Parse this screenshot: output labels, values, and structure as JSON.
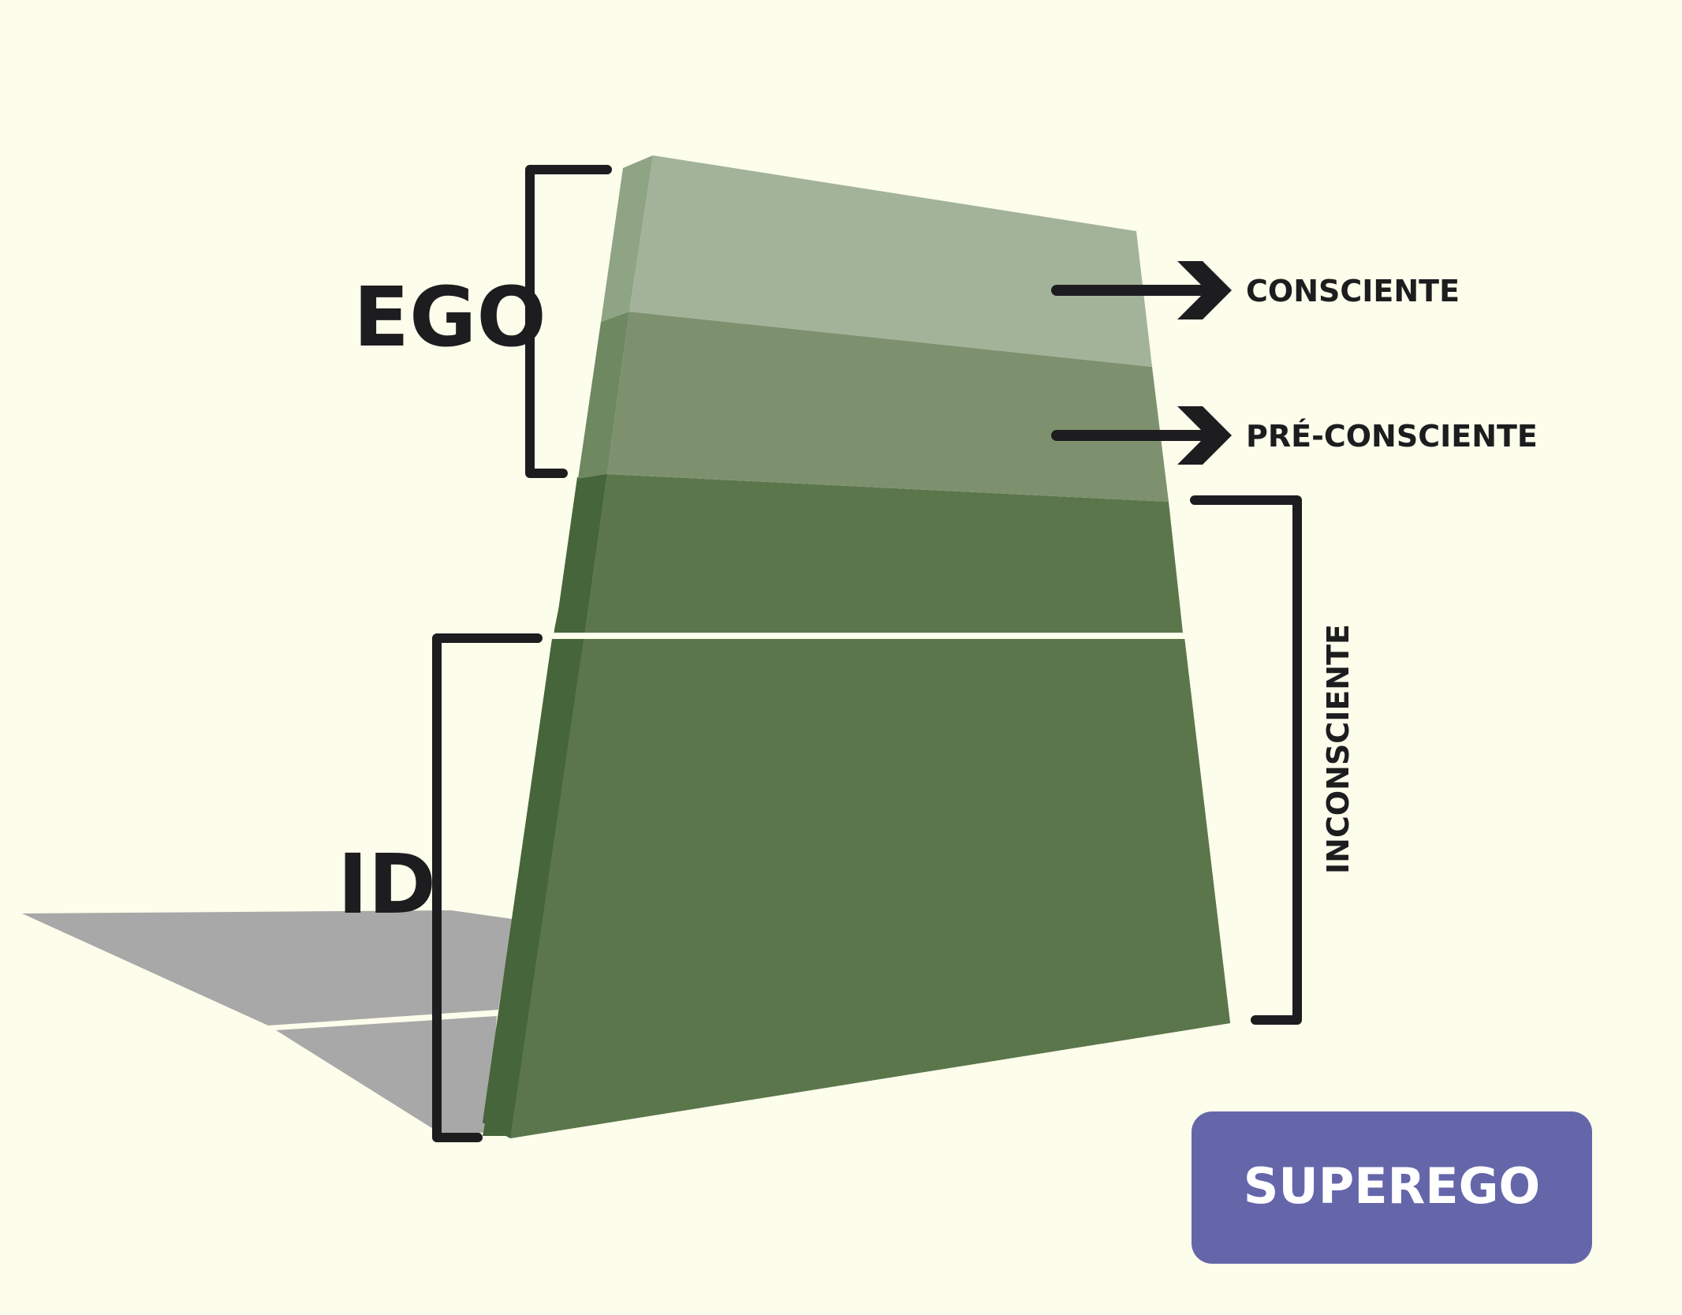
{
  "labels": {
    "ego": "EGO",
    "id": "ID",
    "consciente": "CONSCIENTE",
    "pre_consciente": "PRÉ-CONSCIENTE",
    "inconsciente": "INCONSCIENTE",
    "superego": "SUPEREGO"
  },
  "colors": {
    "background": "#fdfdec",
    "layer_consciente": "#a3b39a",
    "layer_preconsciente": "#7d916f",
    "layer_inconsciente": "#5b764b",
    "side_face_dark": "#46653a",
    "shadow": "#a8a8a8",
    "bracket": "#1d1d1f",
    "superego_box": "#6566aa"
  },
  "icons": [
    "right-arrow-icon"
  ]
}
